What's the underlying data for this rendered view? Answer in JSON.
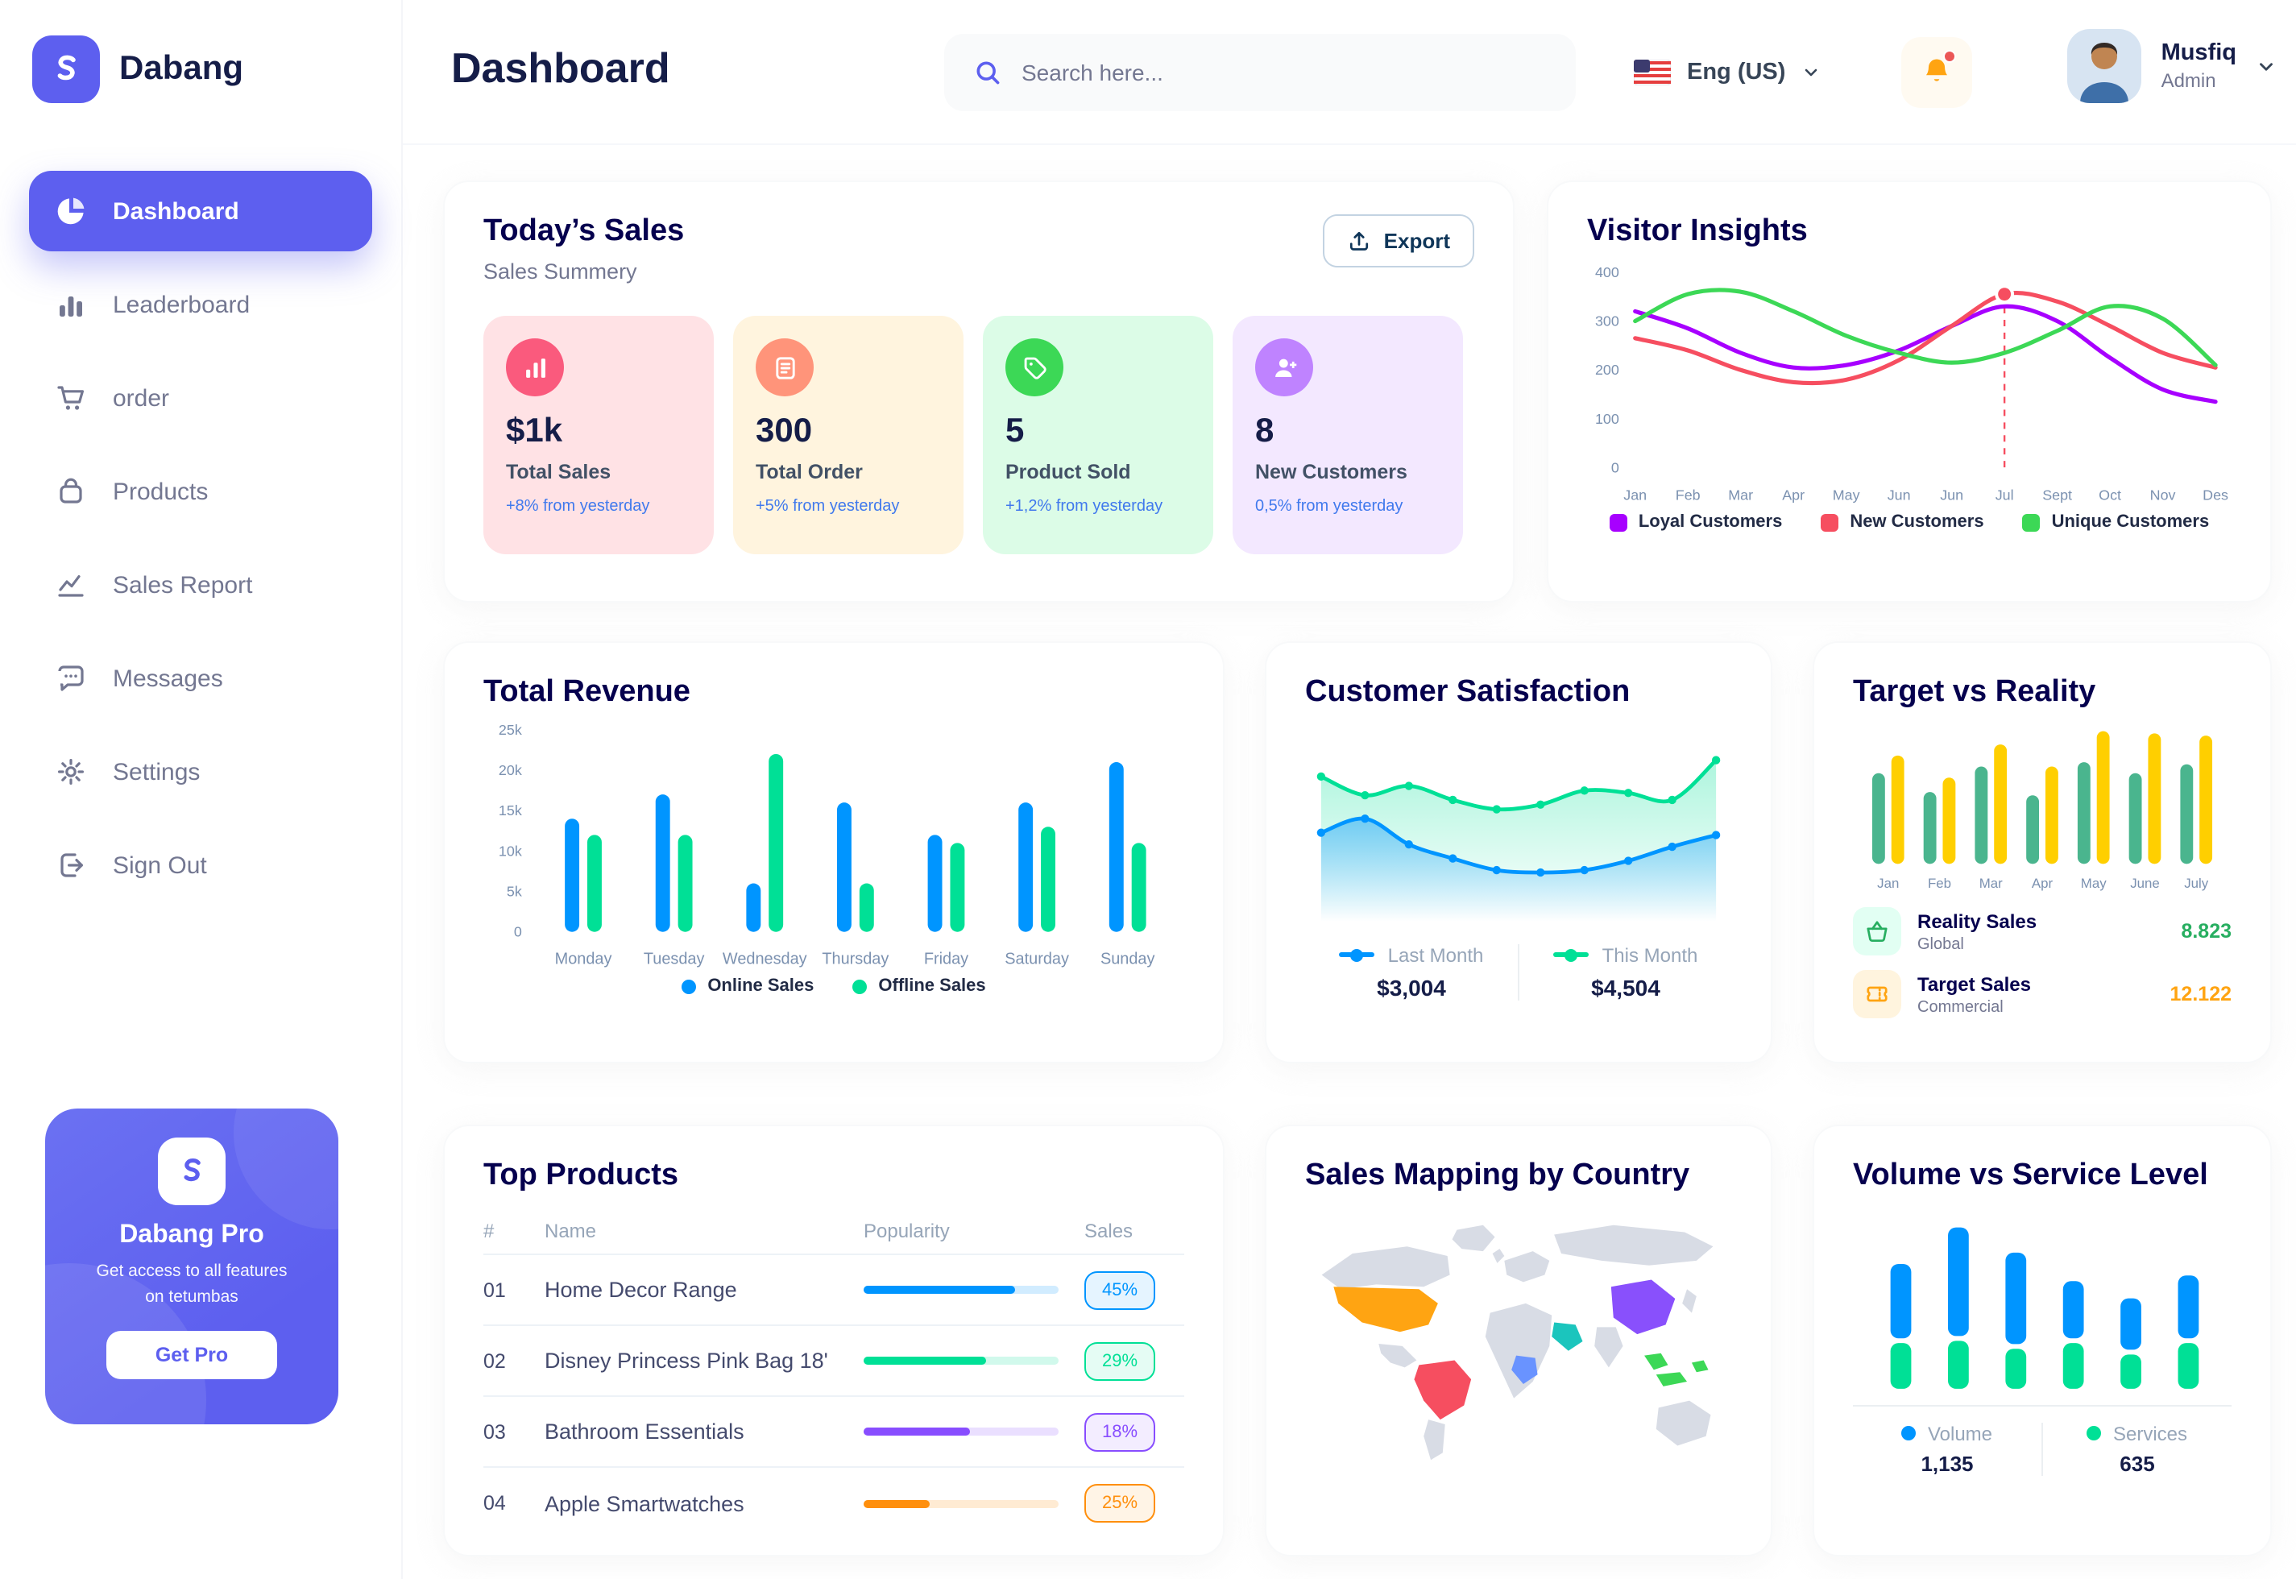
{
  "brand": {
    "name": "Dabang"
  },
  "colors": {
    "primary": "#5D5FEF",
    "text_dark": "#151D48",
    "title_navy": "#05004E",
    "text_gray": "#737791",
    "blue": "#0095FF",
    "green": "#00E096",
    "purple": "#A700FF",
    "red": "#F64E60",
    "yellow": "#FFCF00"
  },
  "sidebar": {
    "items": [
      {
        "label": "Dashboard",
        "active": true
      },
      {
        "label": "Leaderboard"
      },
      {
        "label": "order"
      },
      {
        "label": "Products"
      },
      {
        "label": "Sales Report"
      },
      {
        "label": "Messages"
      },
      {
        "label": "Settings"
      },
      {
        "label": "Sign Out"
      }
    ],
    "pro": {
      "title": "Dabang Pro",
      "text": "Get access to all features on tetumbas",
      "button": "Get Pro"
    }
  },
  "header": {
    "title": "Dashboard",
    "search_placeholder": "Search here...",
    "language": "Eng (US)",
    "user": {
      "name": "Musfiq",
      "role": "Admin"
    }
  },
  "today_sales": {
    "title": "Today’s Sales",
    "subtitle": "Sales Summery",
    "export_label": "Export",
    "cards": [
      {
        "value": "$1k",
        "label": "Total Sales",
        "change": "+8% from yesterday",
        "bg": "#FFE2E5",
        "icon_bg": "#FA5A7D",
        "icon": "bar-chart-icon"
      },
      {
        "value": "300",
        "label": "Total Order",
        "change": "+5% from yesterday",
        "bg": "#FFF4DE",
        "icon_bg": "#FF947A",
        "icon": "order-file-icon"
      },
      {
        "value": "5",
        "label": "Product Sold",
        "change": "+1,2% from yesterday",
        "bg": "#DCFCE7",
        "icon_bg": "#3CD856",
        "icon": "tag-icon"
      },
      {
        "value": "8",
        "label": "New Customers",
        "change": "0,5% from yesterday",
        "bg": "#F3E8FF",
        "icon_bg": "#BF83FF",
        "icon": "new-customer-icon"
      }
    ]
  },
  "chart_data": [
    {
      "id": "visitor_insights",
      "type": "line",
      "title": "Visitor Insights",
      "x": [
        "Jan",
        "Feb",
        "Mar",
        "Apr",
        "May",
        "Jun",
        "Jun",
        "Jul",
        "Sept",
        "Oct",
        "Nov",
        "Des"
      ],
      "ylim": [
        0,
        400
      ],
      "yticks": [
        0,
        100,
        200,
        300,
        400
      ],
      "legend_position": "bottom",
      "series": [
        {
          "name": "Loyal Customers",
          "color": "#A700FF",
          "values": [
            320,
            285,
            235,
            205,
            210,
            240,
            290,
            330,
            300,
            225,
            160,
            135
          ]
        },
        {
          "name": "New Customers",
          "color": "#F64E60",
          "values": [
            265,
            240,
            200,
            175,
            180,
            220,
            290,
            355,
            340,
            290,
            235,
            205
          ]
        },
        {
          "name": "Unique Customers",
          "color": "#3CD856",
          "values": [
            300,
            355,
            360,
            320,
            270,
            235,
            215,
            235,
            280,
            330,
            305,
            210
          ]
        }
      ],
      "marker": {
        "series": 1,
        "index": 7
      }
    },
    {
      "id": "total_revenue",
      "type": "bar",
      "title": "Total Revenue",
      "categories": [
        "Monday",
        "Tuesday",
        "Wednesday",
        "Thursday",
        "Friday",
        "Saturday",
        "Sunday"
      ],
      "ylim": [
        0,
        25
      ],
      "yticks": [
        "0",
        "5k",
        "10k",
        "15k",
        "20k",
        "25k"
      ],
      "legend_position": "bottom",
      "series": [
        {
          "name": "Online Sales",
          "color": "#0095FF",
          "values": [
            14,
            17,
            6,
            16,
            12,
            16,
            21
          ]
        },
        {
          "name": "Offline Sales",
          "color": "#00E096",
          "values": [
            12,
            12,
            22,
            6,
            11,
            13,
            11
          ]
        }
      ]
    },
    {
      "id": "customer_satisfaction",
      "type": "area",
      "title": "Customer Satisfaction",
      "ylim": [
        1.5,
        5.6
      ],
      "series": [
        {
          "name": "Last Month",
          "color": "#0095FF",
          "total": "$3,004",
          "values": [
            3.4,
            3.7,
            3.15,
            2.85,
            2.6,
            2.55,
            2.6,
            2.8,
            3.1,
            3.35
          ]
        },
        {
          "name": "This Month",
          "color": "#00E096",
          "total": "$4,504",
          "values": [
            4.6,
            4.2,
            4.4,
            4.1,
            3.9,
            4.0,
            4.3,
            4.25,
            4.1,
            4.95
          ]
        }
      ]
    },
    {
      "id": "target_vs_reality",
      "type": "bar",
      "title": "Target vs Reality",
      "categories": [
        "Jan",
        "Feb",
        "Mar",
        "Apr",
        "May",
        "June",
        "July"
      ],
      "ylim": [
        0,
        13
      ],
      "series": [
        {
          "name": "Reality Sales",
          "subtitle": "Global",
          "color": "#4AB58E",
          "icon_bg": "#E2FFF3",
          "value_label": "8.823",
          "value_color": "#27AE60",
          "values": [
            8.2,
            6.5,
            8.8,
            6.2,
            9.2,
            8.2,
            9.0
          ]
        },
        {
          "name": "Target Sales",
          "subtitle": "Commercial",
          "color": "#FFCF00",
          "icon_bg": "#FFF4DE",
          "value_label": "12.122",
          "value_color": "#FFA412",
          "values": [
            9.8,
            7.8,
            10.8,
            8.8,
            12.0,
            11.8,
            11.6
          ]
        }
      ]
    },
    {
      "id": "top_products",
      "type": "table",
      "title": "Top Products",
      "columns": [
        "#",
        "Name",
        "Popularity",
        "Sales"
      ],
      "rows": [
        {
          "num": "01",
          "name": "Home Decor Range",
          "percent": "45%",
          "fill": 0.78,
          "color": "#0095FF"
        },
        {
          "num": "02",
          "name": "Disney Princess Pink Bag 18'",
          "percent": "29%",
          "fill": 0.63,
          "color": "#00E096"
        },
        {
          "num": "03",
          "name": "Bathroom Essentials",
          "percent": "18%",
          "fill": 0.55,
          "color": "#884DFF"
        },
        {
          "num": "04",
          "name": "Apple Smartwatches",
          "percent": "25%",
          "fill": 0.34,
          "color": "#FF8F0D"
        }
      ]
    },
    {
      "id": "sales_mapping",
      "type": "map",
      "title": "Sales Mapping by Country",
      "regions": [
        {
          "name": "United States",
          "color": "#FFA412"
        },
        {
          "name": "Brazil",
          "color": "#F64E60"
        },
        {
          "name": "China",
          "color": "#8950FC"
        },
        {
          "name": "Saudi Arabia",
          "color": "#1BC5BD"
        },
        {
          "name": "Dem. Rep. Congo",
          "color": "#6993FF"
        },
        {
          "name": "Indonesia",
          "color": "#3CD856"
        }
      ]
    },
    {
      "id": "volume_vs_service",
      "type": "stacked-bar",
      "title": "Volume vs Service Level",
      "series": [
        {
          "name": "Volume",
          "color": "#0095FF",
          "total": "1,135",
          "values": [
            65,
            95,
            80,
            50,
            45,
            55
          ]
        },
        {
          "name": "Services",
          "color": "#00E096",
          "total": "635",
          "values": [
            40,
            42,
            35,
            40,
            30,
            40
          ]
        }
      ]
    }
  ]
}
